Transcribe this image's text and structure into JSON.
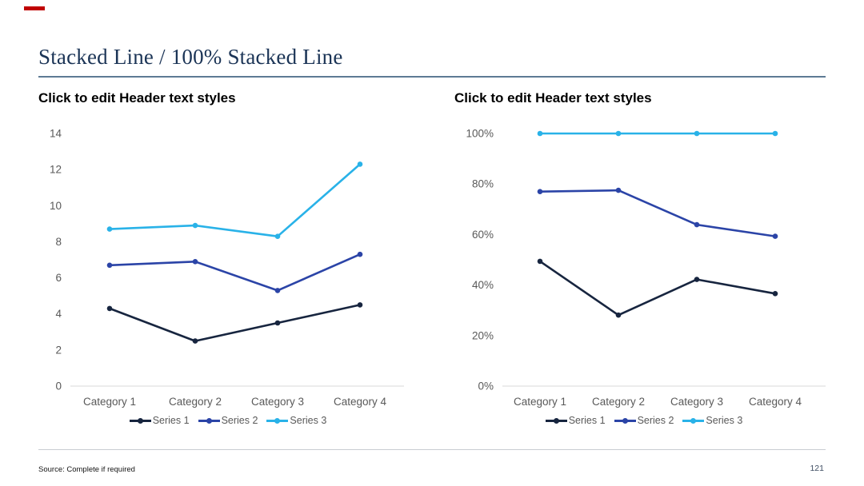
{
  "slide": {
    "title": "Stacked Line / 100% Stacked Line",
    "accent_color": "#C00000",
    "title_color": "#1B3456",
    "footer": {
      "source": "Source: Complete if required",
      "page_number": "121"
    }
  },
  "chart_data": [
    {
      "type": "line",
      "variant": "stacked-line",
      "title": "Click to edit Header text styles",
      "categories": [
        "Category 1",
        "Category 2",
        "Category 3",
        "Category 4"
      ],
      "xlabel": "",
      "ylabel": "",
      "ylim": [
        0,
        14
      ],
      "yticks": [
        0,
        2,
        4,
        6,
        8,
        10,
        12,
        14
      ],
      "tick_suffix": "",
      "grid": false,
      "legend_position": "bottom",
      "axis_text_color": "#595959",
      "baseline_color": "#D9D9D9",
      "series": [
        {
          "name": "Series 1",
          "color": "#17253F",
          "values": [
            4.3,
            2.5,
            3.5,
            4.5
          ]
        },
        {
          "name": "Series 2",
          "color": "#2B44A7",
          "values": [
            6.7,
            6.9,
            5.3,
            7.3
          ]
        },
        {
          "name": "Series 3",
          "color": "#29B2E8",
          "values": [
            8.7,
            8.9,
            8.3,
            12.3
          ]
        }
      ]
    },
    {
      "type": "line",
      "variant": "100%-stacked-line",
      "title": "Click to edit Header text styles",
      "categories": [
        "Category 1",
        "Category 2",
        "Category 3",
        "Category 4"
      ],
      "xlabel": "",
      "ylabel": "",
      "ylim": [
        0,
        100
      ],
      "yticks": [
        0,
        20,
        40,
        60,
        80,
        100
      ],
      "tick_suffix": "%",
      "grid": false,
      "legend_position": "bottom",
      "axis_text_color": "#595959",
      "baseline_color": "#D9D9D9",
      "series": [
        {
          "name": "Series 1",
          "color": "#17253F",
          "values": [
            49.4,
            28.1,
            42.2,
            36.6
          ]
        },
        {
          "name": "Series 2",
          "color": "#2B44A7",
          "values": [
            77.0,
            77.5,
            63.9,
            59.3
          ]
        },
        {
          "name": "Series 3",
          "color": "#29B2E8",
          "values": [
            100,
            100,
            100,
            100
          ]
        }
      ]
    }
  ]
}
